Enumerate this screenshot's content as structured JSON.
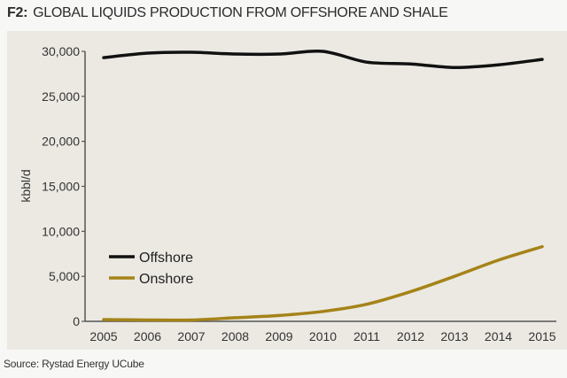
{
  "header": {
    "figure_label": "F2:",
    "title": "GLOBAL LIQUIDS PRODUCTION FROM OFFSHORE AND SHALE"
  },
  "footer": {
    "source": "Source: Rystad Energy UCube"
  },
  "colors": {
    "panel_background": "#ebe9e2",
    "page_background": "#f7f7f6",
    "offshore": "#111111",
    "onshore": "#a58318",
    "axis": "#555555"
  },
  "chart_data": {
    "type": "line",
    "title": "F2: GLOBAL LIQUIDS PRODUCTION FROM OFFSHORE AND SHALE",
    "xlabel": "",
    "ylabel": "kbbl/d",
    "ylim": [
      0,
      30000
    ],
    "yticks": [
      0,
      5000,
      10000,
      15000,
      20000,
      25000,
      30000
    ],
    "ytick_labels": [
      "0",
      "5,000",
      "10,000",
      "15,000",
      "20,000",
      "25,000",
      "30,000"
    ],
    "categories": [
      "2005",
      "2006",
      "2007",
      "2008",
      "2009",
      "2010",
      "2011",
      "2012",
      "2013",
      "2014",
      "2015"
    ],
    "series": [
      {
        "name": "Offshore",
        "color": "#111111",
        "values": [
          29300,
          29800,
          29900,
          29700,
          29700,
          30000,
          28800,
          28600,
          28200,
          28500,
          29100
        ]
      },
      {
        "name": "Onshore",
        "color": "#a58318",
        "values": [
          200,
          150,
          150,
          400,
          650,
          1100,
          1900,
          3300,
          5000,
          6800,
          8300
        ]
      }
    ],
    "legend": {
      "position": "lower-left inside plot",
      "entries": [
        "Offshore",
        "Onshore"
      ]
    },
    "grid": false,
    "source": "Source: Rystad Energy UCube"
  }
}
